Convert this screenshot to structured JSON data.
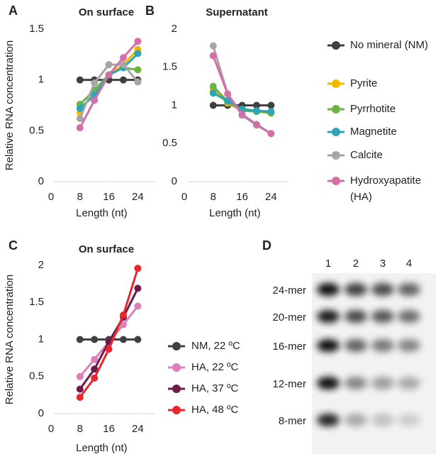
{
  "chart_data": [
    {
      "type": "line",
      "panel": "A",
      "title": "On surface",
      "x_label": "Length (nt)",
      "y_label": "Relative RNA concentration",
      "x": [
        8,
        12,
        16,
        20,
        24
      ],
      "xlim": [
        0,
        28
      ],
      "xticks": [
        0,
        8,
        16,
        24
      ],
      "ylim": [
        0,
        1.5
      ],
      "yticks": [
        0,
        0.5,
        1,
        1.5
      ],
      "series": [
        {
          "name": "No mineral (NM)",
          "color": "#404040",
          "values": [
            1,
            1,
            1,
            1,
            1
          ]
        },
        {
          "name": "Pyrite",
          "color": "#f5b800",
          "values": [
            0.68,
            0.9,
            1.05,
            1.15,
            1.3
          ]
        },
        {
          "name": "Pyrrhotite",
          "color": "#6ab344",
          "values": [
            0.76,
            0.9,
            1.05,
            1.12,
            1.1
          ]
        },
        {
          "name": "Magnetite",
          "color": "#2aa6b8",
          "values": [
            0.72,
            0.85,
            1.05,
            1.12,
            1.26
          ]
        },
        {
          "name": "Calcite",
          "color": "#a6a6a6",
          "values": [
            0.62,
            0.97,
            1.15,
            1.15,
            0.98
          ]
        },
        {
          "name": "Hydroxyapatite (HA)",
          "color": "#d36fa8",
          "values": [
            0.53,
            0.8,
            1.05,
            1.22,
            1.38
          ]
        }
      ]
    },
    {
      "type": "line",
      "panel": "B",
      "title": "Supernatant",
      "x_label": "Length (nt)",
      "x": [
        8,
        12,
        16,
        20,
        24
      ],
      "xlim": [
        0,
        28
      ],
      "xticks": [
        0,
        8,
        16,
        24
      ],
      "ylim": [
        0,
        2
      ],
      "yticks": [
        0,
        0.5,
        1,
        1.5,
        2
      ],
      "series": [
        {
          "name": "No mineral (NM)",
          "color": "#404040",
          "values": [
            1,
            1,
            1,
            1,
            1
          ]
        },
        {
          "name": "Pyrite",
          "color": "#f5b800",
          "values": [
            1.2,
            1.03,
            0.93,
            0.92,
            0.9
          ]
        },
        {
          "name": "Pyrrhotite",
          "color": "#6ab344",
          "values": [
            1.25,
            1.05,
            0.93,
            0.92,
            0.9
          ]
        },
        {
          "name": "Magnetite",
          "color": "#2aa6b8",
          "values": [
            1.16,
            1.06,
            0.95,
            0.93,
            0.92
          ]
        },
        {
          "name": "Calcite",
          "color": "#a6a6a6",
          "values": [
            1.78,
            1.15,
            0.87,
            0.74,
            0.63
          ]
        },
        {
          "name": "Hydroxyapatite (HA)",
          "color": "#d36fa8",
          "values": [
            1.65,
            1.15,
            0.88,
            0.75,
            0.63
          ]
        }
      ]
    },
    {
      "type": "line",
      "panel": "C",
      "title": "On surface",
      "x_label": "Length (nt)",
      "y_label": "Relative RNA concentration",
      "x": [
        8,
        12,
        16,
        20,
        24
      ],
      "xlim": [
        0,
        28
      ],
      "xticks": [
        0,
        8,
        16,
        24
      ],
      "ylim": [
        0,
        2
      ],
      "yticks": [
        0,
        0.5,
        1,
        1.5,
        2
      ],
      "series": [
        {
          "name": "NM, 22 ºC",
          "color": "#404040",
          "values": [
            1,
            1,
            1,
            1,
            1
          ]
        },
        {
          "name": "HA, 22 ºC",
          "color": "#dc7fba",
          "values": [
            0.5,
            0.73,
            0.97,
            1.2,
            1.45
          ]
        },
        {
          "name": "HA, 37 ºC",
          "color": "#6e1a4a",
          "values": [
            0.33,
            0.6,
            0.97,
            1.3,
            1.69
          ]
        },
        {
          "name": "HA, 48 ºC",
          "color": "#e8262b",
          "values": [
            0.22,
            0.48,
            0.87,
            1.33,
            1.96
          ]
        }
      ]
    }
  ],
  "gel": {
    "panel": "D",
    "lanes": [
      "1",
      "2",
      "3",
      "4"
    ],
    "bands": [
      "24-mer",
      "20-mer",
      "16-mer",
      "12-mer",
      "8-mer"
    ]
  }
}
